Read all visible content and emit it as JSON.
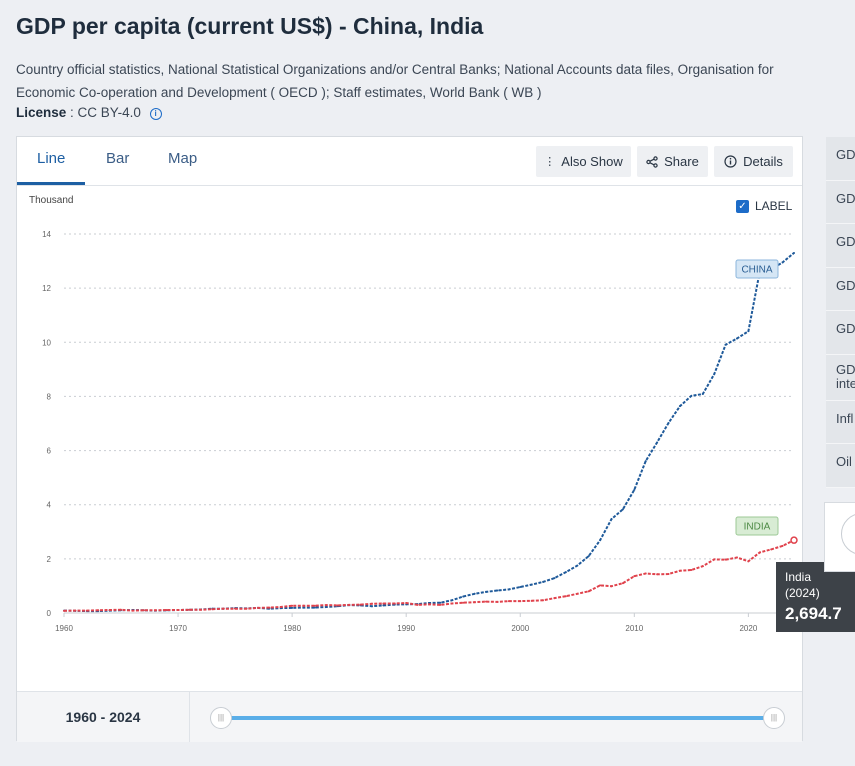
{
  "page": {
    "title": "GDP per capita (current US$) - China, India",
    "source": "Country official statistics, National Statistical Organizations and/or Central Banks; National Accounts data files, Organisation for Economic Co-operation and Development ( OECD ); Staff estimates, World Bank ( WB )",
    "license_label": "License",
    "license_value": ": CC BY-4.0"
  },
  "tabs": [
    {
      "label": "Line",
      "active": true
    },
    {
      "label": "Bar",
      "active": false
    },
    {
      "label": "Map",
      "active": false
    }
  ],
  "toolbar": {
    "also_show": "Also Show",
    "share": "Share",
    "details": "Details"
  },
  "label_toggle": {
    "label": "LABEL",
    "checked": true
  },
  "tooltip": {
    "country": "India",
    "year": "(2024)",
    "value": "2,694.7"
  },
  "range": {
    "text": "1960 - 2024"
  },
  "side_items": [
    "GD",
    "GD",
    "GD",
    "GD",
    "GD",
    "GD inte",
    "Infl",
    "Oil"
  ],
  "chart_data": {
    "type": "line",
    "ylabel": "Thousand",
    "xlim": [
      1960,
      2024
    ],
    "ylim": [
      0,
      14
    ],
    "xticks": [
      1960,
      1970,
      1980,
      1990,
      2000,
      2010,
      2020
    ],
    "yticks": [
      0,
      2,
      4,
      6,
      8,
      10,
      12,
      14
    ],
    "grid": "horizontal-dotted",
    "colors": {
      "China": "#1f5a9a",
      "India": "#e0424c"
    },
    "series": [
      {
        "name": "CHINA",
        "x": [
          1960,
          1961,
          1962,
          1963,
          1964,
          1965,
          1966,
          1967,
          1968,
          1969,
          1970,
          1971,
          1972,
          1973,
          1974,
          1975,
          1976,
          1977,
          1978,
          1979,
          1980,
          1981,
          1982,
          1983,
          1984,
          1985,
          1986,
          1987,
          1988,
          1989,
          1990,
          1991,
          1992,
          1993,
          1994,
          1995,
          1996,
          1997,
          1998,
          1999,
          2000,
          2001,
          2002,
          2003,
          2004,
          2005,
          2006,
          2007,
          2008,
          2009,
          2010,
          2011,
          2012,
          2013,
          2014,
          2015,
          2016,
          2017,
          2018,
          2019,
          2020,
          2021,
          2022,
          2023,
          2024
        ],
        "values": [
          0.09,
          0.08,
          0.07,
          0.07,
          0.09,
          0.1,
          0.11,
          0.1,
          0.09,
          0.1,
          0.11,
          0.12,
          0.13,
          0.16,
          0.16,
          0.18,
          0.17,
          0.19,
          0.16,
          0.18,
          0.19,
          0.2,
          0.2,
          0.22,
          0.25,
          0.29,
          0.28,
          0.25,
          0.28,
          0.31,
          0.32,
          0.33,
          0.37,
          0.38,
          0.47,
          0.61,
          0.71,
          0.78,
          0.83,
          0.87,
          0.96,
          1.05,
          1.15,
          1.29,
          1.51,
          1.75,
          2.1,
          2.69,
          3.47,
          3.83,
          4.55,
          5.61,
          6.3,
          7.02,
          7.64,
          8.02,
          8.09,
          8.82,
          9.91,
          10.14,
          10.41,
          12.62,
          12.7,
          12.95,
          13.3
        ]
      },
      {
        "name": "INDIA",
        "x": [
          1960,
          1961,
          1962,
          1963,
          1964,
          1965,
          1966,
          1967,
          1968,
          1969,
          1970,
          1971,
          1972,
          1973,
          1974,
          1975,
          1976,
          1977,
          1978,
          1979,
          1980,
          1981,
          1982,
          1983,
          1984,
          1985,
          1986,
          1987,
          1988,
          1989,
          1990,
          1991,
          1992,
          1993,
          1994,
          1995,
          1996,
          1997,
          1998,
          1999,
          2000,
          2001,
          2002,
          2003,
          2004,
          2005,
          2006,
          2007,
          2008,
          2009,
          2010,
          2011,
          2012,
          2013,
          2014,
          2015,
          2016,
          2017,
          2018,
          2019,
          2020,
          2021,
          2022,
          2023,
          2024
        ],
        "values": [
          0.08,
          0.09,
          0.09,
          0.1,
          0.11,
          0.12,
          0.09,
          0.1,
          0.1,
          0.11,
          0.11,
          0.12,
          0.12,
          0.14,
          0.16,
          0.16,
          0.16,
          0.19,
          0.2,
          0.22,
          0.27,
          0.27,
          0.27,
          0.29,
          0.28,
          0.3,
          0.31,
          0.34,
          0.35,
          0.35,
          0.37,
          0.3,
          0.32,
          0.3,
          0.35,
          0.38,
          0.4,
          0.42,
          0.41,
          0.44,
          0.44,
          0.45,
          0.47,
          0.55,
          0.62,
          0.71,
          0.8,
          1.02,
          0.99,
          1.1,
          1.36,
          1.46,
          1.43,
          1.44,
          1.56,
          1.59,
          1.73,
          1.98,
          1.97,
          2.05,
          1.91,
          2.24,
          2.35,
          2.48,
          2.69
        ]
      }
    ],
    "annotations": [
      "CHINA",
      "INDIA"
    ],
    "tick_label_format": "thousands"
  }
}
